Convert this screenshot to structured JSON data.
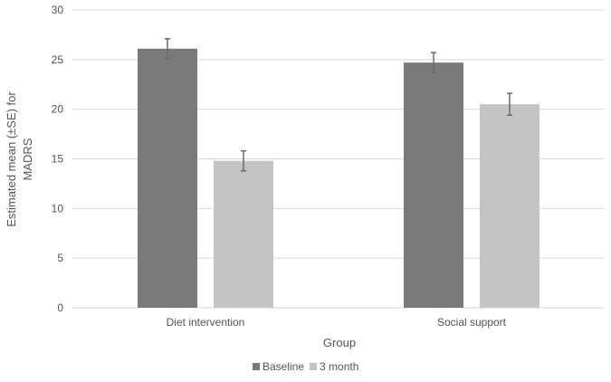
{
  "chart_data": {
    "type": "bar",
    "title": "",
    "xlabel": "Group",
    "ylabel_lines": [
      "Estimated mean (±SE) for",
      "MADRS"
    ],
    "categories": [
      "Diet intervention",
      "Social support"
    ],
    "series": [
      {
        "name": "Baseline",
        "values": [
          26.1,
          24.7
        ],
        "errors": [
          1.0,
          1.0
        ],
        "color": "#7a7a7a"
      },
      {
        "name": "3 month",
        "values": [
          14.8,
          20.5
        ],
        "errors": [
          1.0,
          1.1
        ],
        "color": "#c4c4c4"
      }
    ],
    "ylim": [
      0,
      30
    ],
    "yticks": [
      "0",
      "5",
      "10",
      "15",
      "20",
      "25",
      "30"
    ],
    "grid": true,
    "legend_position": "bottom-center",
    "error_bar_color": "#6a6a6a",
    "grid_color": "#d9d9d9"
  }
}
